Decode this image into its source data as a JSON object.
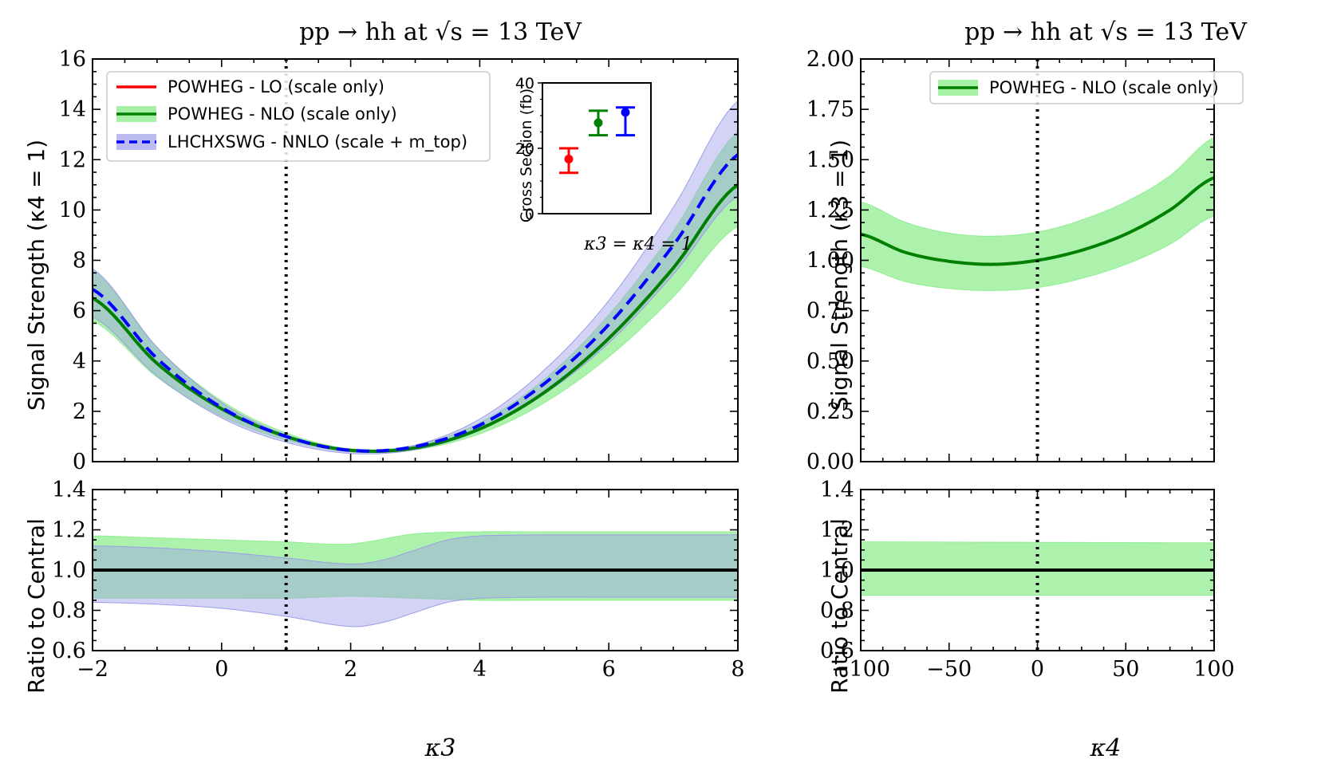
{
  "chart_data": [
    {
      "type": "line",
      "title": "pp → hh at √s = 13 TeV",
      "panel": "left-main",
      "xlabel": "κ3",
      "ylabel": "Signal Strength (κ4 = 1)",
      "xlim": [
        -2,
        8
      ],
      "ylim": [
        0,
        16
      ],
      "xticks": [
        -2,
        0,
        2,
        4,
        6,
        8
      ],
      "yticks": [
        0,
        2,
        4,
        6,
        8,
        10,
        12,
        14,
        16
      ],
      "vline_x": 1,
      "legend": {
        "position": "top-left",
        "entries": [
          {
            "label": "POWHEG - LO (scale only)",
            "color": "#ff0000",
            "style": "solid"
          },
          {
            "label": "POWHEG - NLO (scale only)",
            "color": "#008000",
            "style": "solid",
            "band": "#90ee90"
          },
          {
            "label": "LHCHXSWG - NNLO (scale + m_top)",
            "color": "#0000ff",
            "style": "dashed",
            "band": "#b4b4f0"
          }
        ]
      },
      "series": [
        {
          "name": "POWHEG - NLO (scale only)",
          "x": [
            -2,
            -1,
            0,
            1,
            2,
            3,
            4,
            5,
            6,
            7,
            8
          ],
          "values": [
            6.5,
            3.9,
            2.1,
            1.0,
            0.45,
            0.55,
            1.3,
            2.75,
            4.9,
            7.7,
            11.0
          ]
        },
        {
          "name": "LHCHXSWG - NNLO (scale + m_top)",
          "x": [
            -2,
            -1,
            0,
            1,
            2,
            3,
            4,
            5,
            6,
            7,
            8
          ],
          "values": [
            6.85,
            4.1,
            2.15,
            1.0,
            0.45,
            0.6,
            1.45,
            3.1,
            5.45,
            8.6,
            12.2
          ]
        }
      ]
    },
    {
      "type": "area",
      "panel": "left-ratio",
      "xlabel": "κ3",
      "ylabel": "Ratio to Central",
      "xlim": [
        -2,
        8
      ],
      "ylim": [
        0.6,
        1.4
      ],
      "xticks": [
        -2,
        0,
        2,
        4,
        6,
        8
      ],
      "yticks": [
        0.6,
        0.8,
        1.0,
        1.2,
        1.4
      ],
      "vline_x": 1,
      "series": [
        {
          "name": "NLO band",
          "x": [
            -2,
            -1,
            0,
            1,
            2,
            3,
            4,
            5,
            6,
            7,
            8
          ],
          "upper": [
            1.17,
            1.16,
            1.15,
            1.14,
            1.13,
            1.18,
            1.19,
            1.19,
            1.19,
            1.19,
            1.19
          ],
          "lower": [
            0.86,
            0.86,
            0.86,
            0.86,
            0.87,
            0.86,
            0.85,
            0.85,
            0.85,
            0.85,
            0.85
          ]
        },
        {
          "name": "NNLO band",
          "x": [
            -2,
            -1,
            0,
            1,
            2,
            2.5,
            3,
            3.5,
            4,
            5,
            6,
            7,
            8
          ],
          "upper": [
            1.12,
            1.11,
            1.09,
            1.06,
            1.03,
            1.05,
            1.1,
            1.15,
            1.17,
            1.175,
            1.175,
            1.175,
            1.175
          ],
          "lower": [
            0.84,
            0.83,
            0.81,
            0.77,
            0.72,
            0.74,
            0.79,
            0.84,
            0.86,
            0.865,
            0.865,
            0.865,
            0.865
          ]
        },
        {
          "name": "central",
          "x": [
            -2,
            8
          ],
          "values": [
            1.0,
            1.0
          ]
        }
      ]
    },
    {
      "type": "scatter",
      "panel": "inset",
      "ylabel": "Cross Section (fb)",
      "xlabel": "κ3 = κ4 = 1",
      "ylim": [
        0,
        40
      ],
      "yticks": [
        0,
        20,
        40
      ],
      "points": [
        {
          "name": "LO",
          "value": 16.7,
          "low": 12.5,
          "high": 20.0,
          "color": "#ff0000"
        },
        {
          "name": "NLO",
          "value": 27.8,
          "low": 24.0,
          "high": 31.5,
          "color": "#008000"
        },
        {
          "name": "NNLO",
          "value": 31.0,
          "low": 24.0,
          "high": 32.5,
          "color": "#0000ff"
        }
      ]
    },
    {
      "type": "line",
      "title": "pp → hh at √s = 13 TeV",
      "panel": "right-main",
      "xlabel": "κ4",
      "ylabel": "Signal Strength (κ3 = 1)",
      "xlim": [
        -100,
        100
      ],
      "ylim": [
        0,
        2.0
      ],
      "xticks": [
        -100,
        -50,
        0,
        50,
        100
      ],
      "yticks": [
        0.0,
        0.25,
        0.5,
        0.75,
        1.0,
        1.25,
        1.5,
        1.75,
        2.0
      ],
      "ytick_labels": [
        "0.00",
        "0.25",
        "0.50",
        "0.75",
        "1.00",
        "1.25",
        "1.50",
        "1.75",
        "2.00"
      ],
      "vline_x": 0,
      "legend": {
        "position": "top-left",
        "entries": [
          {
            "label": "POWHEG - NLO (scale only)",
            "color": "#008000",
            "style": "solid",
            "band": "#90ee90"
          }
        ]
      },
      "series": [
        {
          "name": "POWHEG - NLO (scale only)",
          "x": [
            -100,
            -75,
            -50,
            -25,
            0,
            25,
            50,
            75,
            100
          ],
          "values": [
            1.13,
            1.04,
            0.995,
            0.98,
            1.0,
            1.05,
            1.13,
            1.25,
            1.41
          ],
          "upper": [
            1.29,
            1.19,
            1.135,
            1.12,
            1.14,
            1.2,
            1.29,
            1.42,
            1.61
          ],
          "lower": [
            0.97,
            0.895,
            0.86,
            0.85,
            0.865,
            0.91,
            0.98,
            1.08,
            1.22
          ]
        }
      ]
    },
    {
      "type": "area",
      "panel": "right-ratio",
      "xlabel": "κ4",
      "ylabel": "Ratio to Central",
      "xlim": [
        -100,
        100
      ],
      "ylim": [
        0.6,
        1.4
      ],
      "xticks": [
        -100,
        -50,
        0,
        50,
        100
      ],
      "yticks": [
        0.6,
        0.8,
        1.0,
        1.2,
        1.4
      ],
      "vline_x": 0,
      "series": [
        {
          "name": "NLO band",
          "x": [
            -100,
            100
          ],
          "upper": [
            1.14,
            1.135
          ],
          "lower": [
            0.875,
            0.875
          ]
        },
        {
          "name": "central",
          "x": [
            -100,
            100
          ],
          "values": [
            1.0,
            1.0
          ]
        }
      ]
    }
  ],
  "text": {
    "title_left": "pp → hh at √s = 13 TeV",
    "title_right": "pp → hh at √s = 13 TeV",
    "ylabel_left_main": "Signal Strength (κ4 = 1)",
    "ylabel_right_main": "Signal Strength (κ3 = 1)",
    "ylabel_ratio": "Ratio to Central",
    "xlabel_left": "κ3",
    "xlabel_right": "κ4",
    "inset_ylabel": "Cross Section (fb)",
    "inset_xlabel": "κ3 = κ4 = 1",
    "legend_lo": "POWHEG - LO (scale only)",
    "legend_nlo": "POWHEG - NLO (scale only)",
    "legend_nnlo": "LHCHXSWG - NNLO (scale + m_top)"
  }
}
